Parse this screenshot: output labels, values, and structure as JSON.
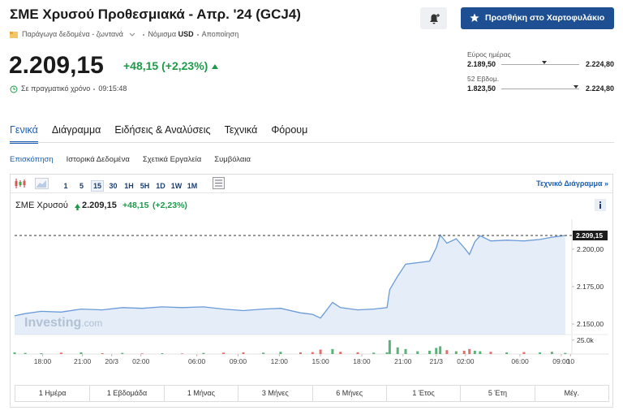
{
  "header": {
    "title": "ΣΜΕ Χρυσού Προθεσμιακά - Απρ. '24 (GCJ4)",
    "button": "Προσθήκη στο Χαρτοφυλάκιο",
    "data_source": "Παράγωγα δεδομένα - ζωντανά",
    "currency_label": "Νόμισμα",
    "currency": "USD",
    "disclaimer": "Αποποίηση"
  },
  "quote": {
    "price": {
      "value": 2209.15,
      "label": "2.209,15"
    },
    "change": "+48,15",
    "change_pct": "(+2,23%)",
    "realtime": "Σε πραγματικό χρόνο",
    "time": "09:15:48"
  },
  "ranges": [
    {
      "label": "Εύρος ημέρας",
      "low": {
        "value": 2189.5,
        "label": "2.189,50"
      },
      "high": {
        "value": 2224.8,
        "label": "2.224,80"
      }
    },
    {
      "label": "52 Εβδομ.",
      "low": {
        "value": 1823.5,
        "label": "1.823,50"
      },
      "high": {
        "value": 2224.8,
        "label": "2.224,80"
      }
    }
  ],
  "tabs": [
    "Γενικά",
    "Διάγραμμα",
    "Ειδήσεις & Αναλύσεις",
    "Τεχνικά",
    "Φόρουμ"
  ],
  "active_tab": 0,
  "subtabs": [
    "Επισκόπηση",
    "Ιστορικά Δεδομένα",
    "Σχετικά Εργαλεία",
    "Συμβόλαια"
  ],
  "active_subtab": 0,
  "toolbar": {
    "intervals": [
      "1",
      "5",
      "15",
      "30",
      "1H",
      "5H",
      "1D",
      "1W",
      "1M"
    ],
    "selected_interval": 2,
    "technical_chart": "Τεχνικό Διάγραμμα »"
  },
  "chart_data": {
    "type": "line",
    "title": "ΣΜΕ Χρυσού",
    "watermark": [
      "Investing",
      ".com"
    ],
    "x": [
      -2.1,
      -1.3,
      -0.1,
      1.4,
      2.9,
      4.5,
      6.0,
      7.5,
      9.0,
      10.5,
      12.1,
      13.6,
      15.1,
      16.6,
      17.9,
      19.4,
      20.3,
      20.9,
      21.8,
      22.4,
      23.7,
      24.9,
      25.9,
      26.1,
      26.7,
      27.3,
      28.2,
      29.1,
      29.6,
      29.9,
      30.4,
      31.1,
      31.7,
      32.1,
      32.5,
      32.9,
      33.7,
      34.9,
      36.2,
      37.4,
      38.3,
      39.3
    ],
    "xlim": [
      -2.1,
      39.8
    ],
    "xticks": [
      {
        "value": 0,
        "label": "18:00"
      },
      {
        "value": 3,
        "label": "21:00"
      },
      {
        "value": 5.2,
        "label": "20/3"
      },
      {
        "value": 7.4,
        "label": "02:00"
      },
      {
        "value": 11.6,
        "label": "06:00"
      },
      {
        "value": 14.7,
        "label": "09:00"
      },
      {
        "value": 17.8,
        "label": "12:00"
      },
      {
        "value": 20.9,
        "label": "15:00"
      },
      {
        "value": 24.0,
        "label": "18:00"
      },
      {
        "value": 27.1,
        "label": "21:00"
      },
      {
        "value": 29.6,
        "label": "21/3"
      },
      {
        "value": 31.8,
        "label": "02:00"
      },
      {
        "value": 35.9,
        "label": "06:00"
      },
      {
        "value": 39.0,
        "label": "09:00"
      },
      {
        "value": 39.7,
        "label": "10"
      }
    ],
    "series": [
      {
        "color": "#6a9bd8",
        "values": [
          2155.5,
          2157,
          2158.5,
          2158,
          2160,
          2159.5,
          2161,
          2160.5,
          2161.5,
          2161,
          2161.5,
          2160,
          2159,
          2160,
          2160.5,
          2157.5,
          2156.5,
          2154,
          2164.5,
          2161,
          2159.5,
          2160,
          2161,
          2173,
          2182,
          2190,
          2191,
          2192,
          2201,
          2209.5,
          2204,
          2207,
          2201,
          2196.5,
          2205,
          2209,
          2205.5,
          2206,
          2205.5,
          2206.5,
          2208,
          2209.15
        ]
      }
    ],
    "ylim": [
      2143,
      2220
    ],
    "yticks": [
      {
        "value": 2150,
        "label": "2.150,00"
      },
      {
        "value": 2175,
        "label": "2.175,00"
      },
      {
        "value": 2200,
        "label": "2.200,00"
      }
    ],
    "volume": {
      "values": [
        3000,
        2000,
        1500,
        2500,
        3000,
        1500,
        2000,
        1000,
        1500,
        1000,
        2000,
        2500,
        3000,
        2500,
        4000,
        3000,
        3500,
        8000,
        9000,
        4000,
        3000,
        2500,
        3000,
        25000,
        12000,
        9000,
        5000,
        6000,
        11000,
        14000,
        7000,
        5000,
        6000,
        9000,
        6000,
        5000,
        4000,
        3000,
        3500,
        3000,
        4000,
        2000
      ],
      "ylim": [
        0,
        35000
      ],
      "yticks": [
        {
          "value": 25000,
          "label": "25.0k"
        }
      ],
      "up_color": "#5bb37a",
      "down_color": "#e0706a"
    }
  },
  "periods": [
    "1 Ημέρα",
    "1 Εβδομάδα",
    "1 Μήνας",
    "3 Μήνες",
    "6 Μήνες",
    "1 Έτος",
    "5 Έτη",
    "Μέγ."
  ]
}
